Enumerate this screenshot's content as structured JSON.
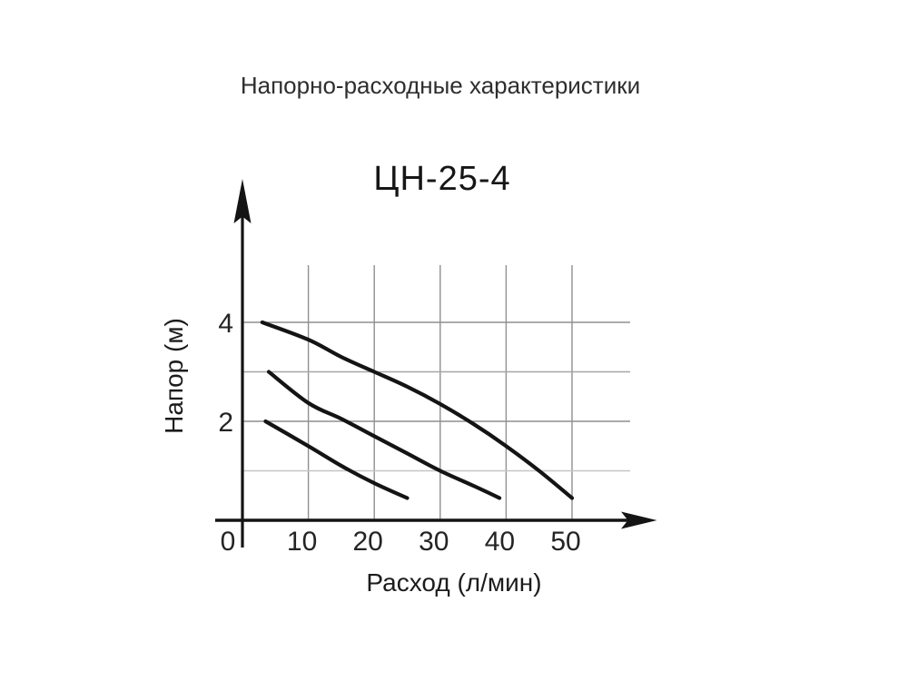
{
  "figure": {
    "title": "Напорно-расходные характеристики"
  },
  "chart_data": {
    "type": "line",
    "title": "ЦН-25-4",
    "xlabel": "Расход (л/мин)",
    "ylabel": "Напор (м)",
    "x_ticks": [
      0,
      10,
      20,
      30,
      40,
      50
    ],
    "y_ticks": [
      4,
      2
    ],
    "xlim": [
      0,
      60
    ],
    "ylim": [
      0,
      5.2
    ],
    "grid": true,
    "legend_position": "none",
    "grid_levels": [
      {
        "h": 1,
        "shade": "minor"
      },
      {
        "h": 2,
        "shade": "major"
      },
      {
        "h": 3,
        "shade": "mid"
      },
      {
        "h": 4,
        "shade": "major"
      }
    ],
    "series": [
      {
        "name": "curve-high",
        "points": [
          [
            3,
            4.0
          ],
          [
            10,
            3.65
          ],
          [
            15,
            3.3
          ],
          [
            20,
            3.0
          ],
          [
            25,
            2.7
          ],
          [
            30,
            2.35
          ],
          [
            35,
            1.95
          ],
          [
            40,
            1.5
          ],
          [
            45,
            1.0
          ],
          [
            50,
            0.45
          ]
        ]
      },
      {
        "name": "curve-mid",
        "points": [
          [
            4,
            3.0
          ],
          [
            10,
            2.37
          ],
          [
            15,
            2.05
          ],
          [
            20,
            1.7
          ],
          [
            25,
            1.35
          ],
          [
            30,
            1.0
          ],
          [
            35,
            0.7
          ],
          [
            39,
            0.45
          ]
        ]
      },
      {
        "name": "curve-low",
        "points": [
          [
            3.5,
            2.0
          ],
          [
            10,
            1.5
          ],
          [
            15,
            1.1
          ],
          [
            20,
            0.75
          ],
          [
            25,
            0.45
          ]
        ]
      }
    ],
    "colors": {
      "curve": "#141414",
      "axis": "#141414",
      "grid_major": "#8f8f8f",
      "grid_mid": "#a6a6a6",
      "grid_minor": "#c6c6c6",
      "text": "#242424",
      "title": "#2e2e2e"
    }
  }
}
